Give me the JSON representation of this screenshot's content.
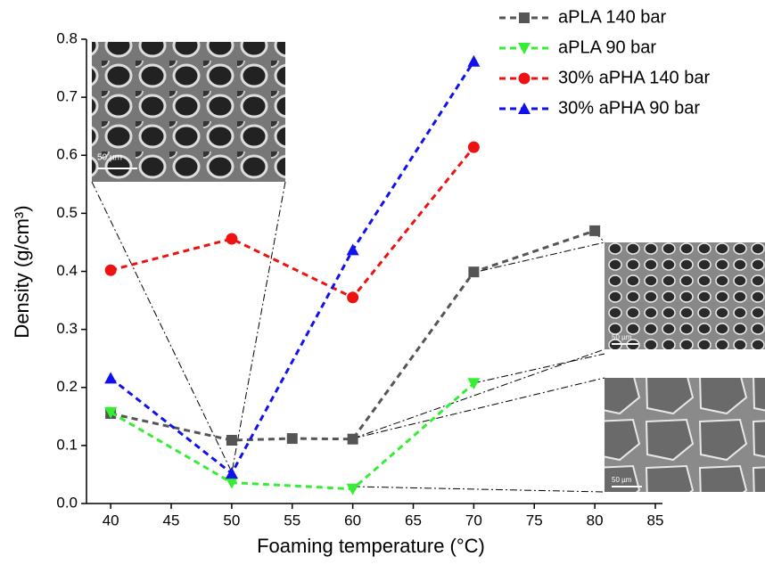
{
  "chart_data": {
    "type": "line",
    "x_label": "Foaming temperature (°C)",
    "y_label": "Density (g/cm³)",
    "xlim": [
      38,
      85
    ],
    "xticks": [
      40,
      45,
      50,
      55,
      60,
      65,
      70,
      75,
      80,
      85
    ],
    "ylim": [
      0,
      0.8
    ],
    "yticks": [
      {
        "value": 0,
        "label": "0.0"
      },
      0.1,
      0.2,
      0.3,
      0.4,
      0.5,
      0.6,
      0.7,
      0.8
    ],
    "legend": "top-right",
    "series": [
      {
        "name": "aPLA 140 bar",
        "color": "#555555",
        "marker": "square",
        "x": [
          40,
          50,
          55,
          60,
          70,
          80
        ],
        "values": [
          0.155,
          0.109,
          0.112,
          0.111,
          0.399,
          0.47
        ]
      },
      {
        "name": "aPLA 90 bar",
        "color": "#33ee33",
        "marker": "triangle-down",
        "x": [
          40,
          50,
          60,
          70
        ],
        "values": [
          0.157,
          0.036,
          0.025,
          0.207
        ]
      },
      {
        "name": "30% aPHA 140 bar",
        "color": "#ee1111",
        "marker": "circle",
        "x": [
          40,
          50,
          60,
          70
        ],
        "values": [
          0.402,
          0.456,
          0.355,
          0.614
        ]
      },
      {
        "name": "30% aPHA 90 bar",
        "color": "#1111ee",
        "marker": "triangle-up",
        "x": [
          40,
          50,
          60,
          70
        ],
        "values": [
          0.216,
          0.052,
          0.437,
          0.762
        ]
      }
    ],
    "insets": [
      {
        "scale_label": "50 µm"
      },
      {
        "scale_label": "50 µm"
      },
      {
        "scale_label": "50 µm"
      }
    ]
  }
}
